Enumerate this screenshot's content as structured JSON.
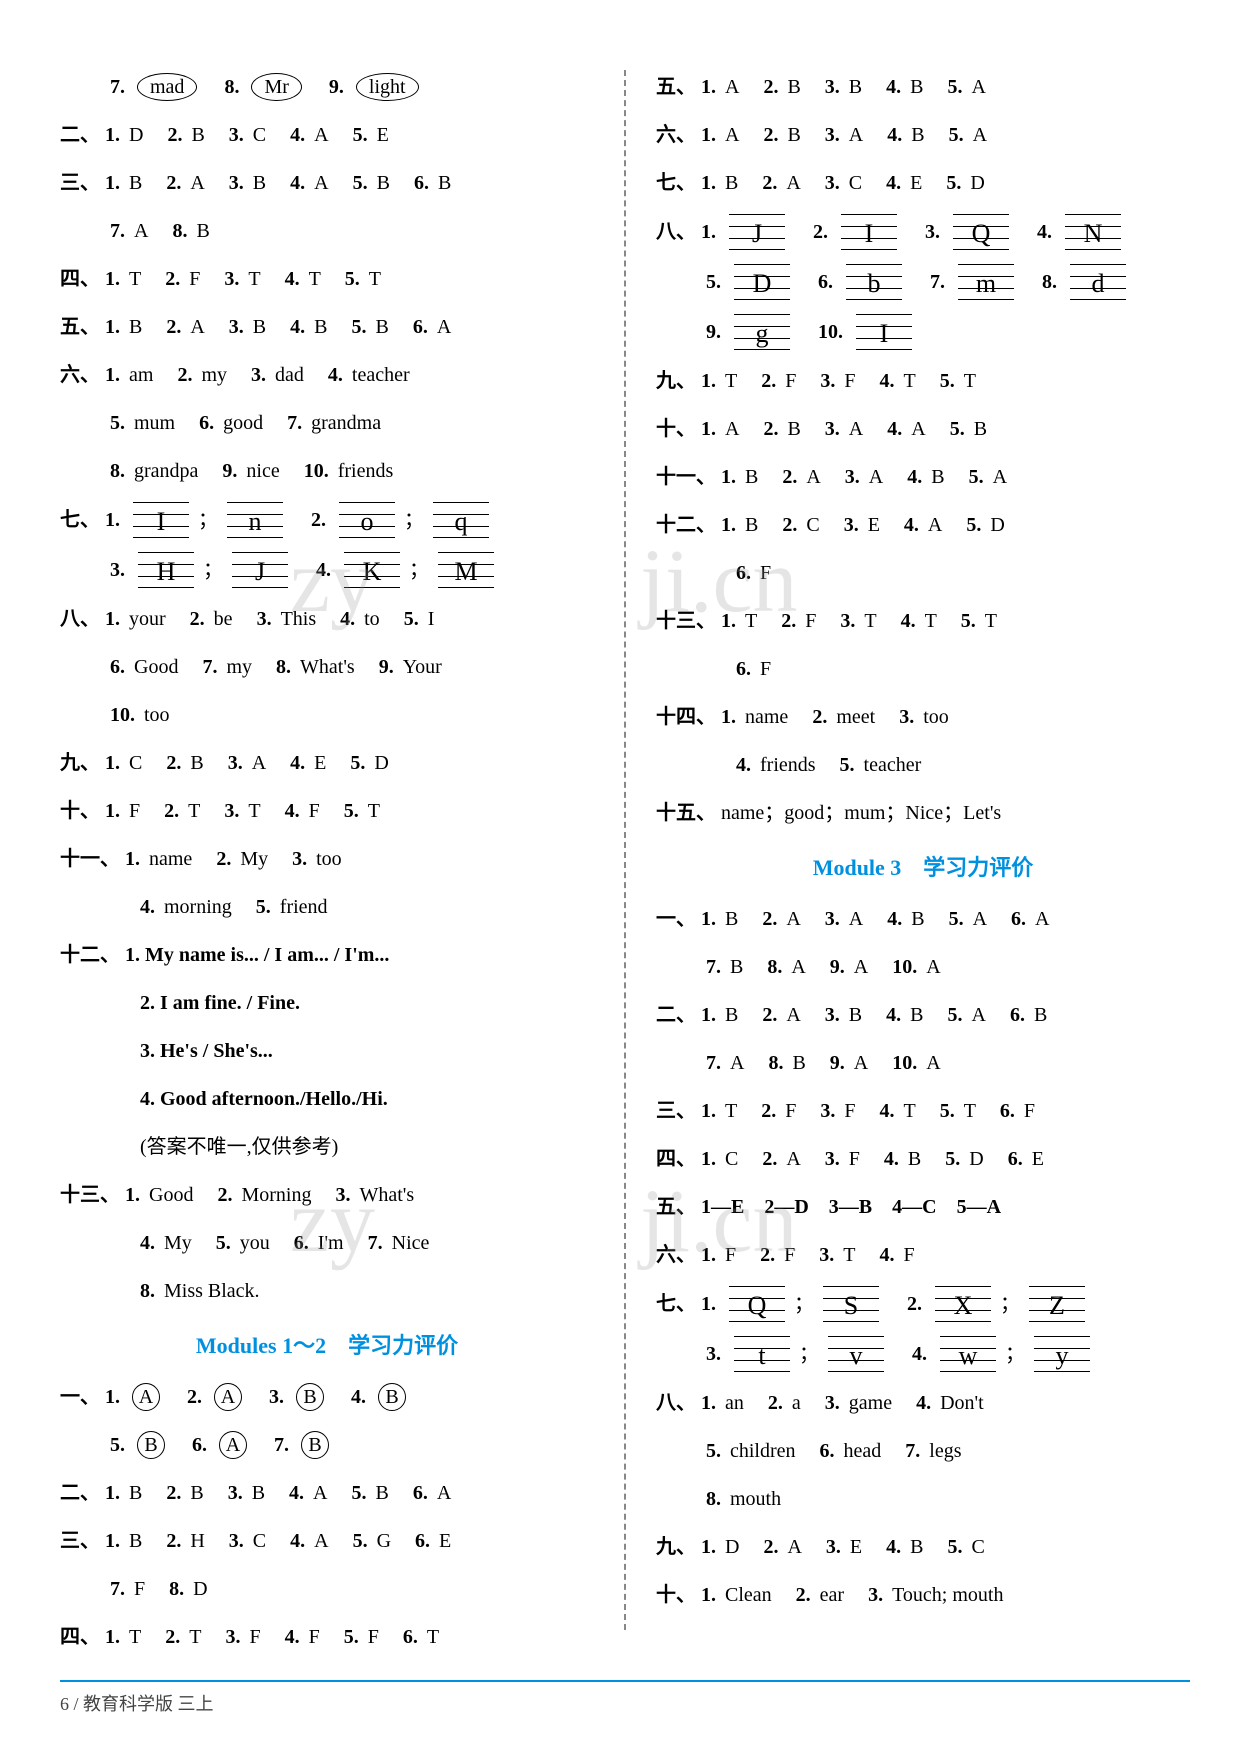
{
  "left": {
    "row_ovals": [
      {
        "n": "7.",
        "w": "mad"
      },
      {
        "n": "8.",
        "w": "Mr"
      },
      {
        "n": "9.",
        "w": "light"
      }
    ],
    "s2": {
      "label": "二、",
      "items": [
        {
          "n": "1.",
          "v": "D"
        },
        {
          "n": "2.",
          "v": "B"
        },
        {
          "n": "3.",
          "v": "C"
        },
        {
          "n": "4.",
          "v": "A"
        },
        {
          "n": "5.",
          "v": "E"
        }
      ]
    },
    "s3a": {
      "label": "三、",
      "items": [
        {
          "n": "1.",
          "v": "B"
        },
        {
          "n": "2.",
          "v": "A"
        },
        {
          "n": "3.",
          "v": "B"
        },
        {
          "n": "4.",
          "v": "A"
        },
        {
          "n": "5.",
          "v": "B"
        },
        {
          "n": "6.",
          "v": "B"
        }
      ]
    },
    "s3b": {
      "items": [
        {
          "n": "7.",
          "v": "A"
        },
        {
          "n": "8.",
          "v": "B"
        }
      ]
    },
    "s4": {
      "label": "四、",
      "items": [
        {
          "n": "1.",
          "v": "T"
        },
        {
          "n": "2.",
          "v": "F"
        },
        {
          "n": "3.",
          "v": "T"
        },
        {
          "n": "4.",
          "v": "T"
        },
        {
          "n": "5.",
          "v": "T"
        }
      ]
    },
    "s5": {
      "label": "五、",
      "items": [
        {
          "n": "1.",
          "v": "B"
        },
        {
          "n": "2.",
          "v": "A"
        },
        {
          "n": "3.",
          "v": "B"
        },
        {
          "n": "4.",
          "v": "B"
        },
        {
          "n": "5.",
          "v": "B"
        },
        {
          "n": "6.",
          "v": "A"
        }
      ]
    },
    "s6a": {
      "label": "六、",
      "items": [
        {
          "n": "1.",
          "v": "am"
        },
        {
          "n": "2.",
          "v": "my"
        },
        {
          "n": "3.",
          "v": "dad"
        },
        {
          "n": "4.",
          "v": "teacher"
        }
      ]
    },
    "s6b": {
      "items": [
        {
          "n": "5.",
          "v": "mum"
        },
        {
          "n": "6.",
          "v": "good"
        },
        {
          "n": "7.",
          "v": "grandma"
        }
      ]
    },
    "s6c": {
      "items": [
        {
          "n": "8.",
          "v": "grandpa"
        },
        {
          "n": "9.",
          "v": "nice"
        },
        {
          "n": "10.",
          "v": "friends"
        }
      ]
    },
    "s7": {
      "label": "七、",
      "r1": [
        {
          "n": "1.",
          "a": "I",
          "b": "n"
        },
        {
          "n": "2.",
          "a": "o",
          "b": "q"
        }
      ],
      "r2": [
        {
          "n": "3.",
          "a": "H",
          "b": "J"
        },
        {
          "n": "4.",
          "a": "K",
          "b": "M"
        }
      ]
    },
    "s8a": {
      "label": "八、",
      "items": [
        {
          "n": "1.",
          "v": "your"
        },
        {
          "n": "2.",
          "v": "be"
        },
        {
          "n": "3.",
          "v": "This"
        },
        {
          "n": "4.",
          "v": "to"
        },
        {
          "n": "5.",
          "v": "I"
        }
      ]
    },
    "s8b": {
      "items": [
        {
          "n": "6.",
          "v": "Good"
        },
        {
          "n": "7.",
          "v": "my"
        },
        {
          "n": "8.",
          "v": "What's"
        },
        {
          "n": "9.",
          "v": "Your"
        }
      ]
    },
    "s8c": {
      "items": [
        {
          "n": "10.",
          "v": "too"
        }
      ]
    },
    "s9": {
      "label": "九、",
      "items": [
        {
          "n": "1.",
          "v": "C"
        },
        {
          "n": "2.",
          "v": "B"
        },
        {
          "n": "3.",
          "v": "A"
        },
        {
          "n": "4.",
          "v": "E"
        },
        {
          "n": "5.",
          "v": "D"
        }
      ]
    },
    "s10": {
      "label": "十、",
      "items": [
        {
          "n": "1.",
          "v": "F"
        },
        {
          "n": "2.",
          "v": "T"
        },
        {
          "n": "3.",
          "v": "T"
        },
        {
          "n": "4.",
          "v": "F"
        },
        {
          "n": "5.",
          "v": "T"
        }
      ]
    },
    "s11a": {
      "label": "十一、",
      "items": [
        {
          "n": "1.",
          "v": "name"
        },
        {
          "n": "2.",
          "v": "My"
        },
        {
          "n": "3.",
          "v": "too"
        }
      ]
    },
    "s11b": {
      "items": [
        {
          "n": "4.",
          "v": "morning"
        },
        {
          "n": "5.",
          "v": "friend"
        }
      ]
    },
    "s12": {
      "label": "十二、",
      "r1": "1. My name is... / I am... / I'm...",
      "r2": "2. I am fine. / Fine.",
      "r3": "3. He's / She's...",
      "r4": "4. Good afternoon./Hello./Hi.",
      "r5": "(答案不唯一,仅供参考)"
    },
    "s13a": {
      "label": "十三、",
      "items": [
        {
          "n": "1.",
          "v": "Good"
        },
        {
          "n": "2.",
          "v": "Morning"
        },
        {
          "n": "3.",
          "v": "What's"
        }
      ]
    },
    "s13b": {
      "items": [
        {
          "n": "4.",
          "v": "My"
        },
        {
          "n": "5.",
          "v": "you"
        },
        {
          "n": "6.",
          "v": "I'm"
        },
        {
          "n": "7.",
          "v": "Nice"
        }
      ]
    },
    "s13c": {
      "items": [
        {
          "n": "8.",
          "v": "Miss Black."
        }
      ]
    },
    "mod12_title": "Modules 1～2　学习力评价",
    "m1a": {
      "label": "一、",
      "items": [
        {
          "n": "1.",
          "v": "A"
        },
        {
          "n": "2.",
          "v": "A"
        },
        {
          "n": "3.",
          "v": "B"
        },
        {
          "n": "4.",
          "v": "B"
        }
      ]
    },
    "m1b": {
      "items": [
        {
          "n": "5.",
          "v": "B"
        },
        {
          "n": "6.",
          "v": "A"
        },
        {
          "n": "7.",
          "v": "B"
        }
      ]
    },
    "m2": {
      "label": "二、",
      "items": [
        {
          "n": "1.",
          "v": "B"
        },
        {
          "n": "2.",
          "v": "B"
        },
        {
          "n": "3.",
          "v": "B"
        },
        {
          "n": "4.",
          "v": "A"
        },
        {
          "n": "5.",
          "v": "B"
        },
        {
          "n": "6.",
          "v": "A"
        }
      ]
    },
    "m3a": {
      "label": "三、",
      "items": [
        {
          "n": "1.",
          "v": "B"
        },
        {
          "n": "2.",
          "v": "H"
        },
        {
          "n": "3.",
          "v": "C"
        },
        {
          "n": "4.",
          "v": "A"
        },
        {
          "n": "5.",
          "v": "G"
        },
        {
          "n": "6.",
          "v": "E"
        }
      ]
    },
    "m3b": {
      "items": [
        {
          "n": "7.",
          "v": "F"
        },
        {
          "n": "8.",
          "v": "D"
        }
      ]
    },
    "m4": {
      "label": "四、",
      "items": [
        {
          "n": "1.",
          "v": "T"
        },
        {
          "n": "2.",
          "v": "T"
        },
        {
          "n": "3.",
          "v": "F"
        },
        {
          "n": "4.",
          "v": "F"
        },
        {
          "n": "5.",
          "v": "F"
        },
        {
          "n": "6.",
          "v": "T"
        }
      ]
    }
  },
  "right": {
    "r5": {
      "label": "五、",
      "items": [
        {
          "n": "1.",
          "v": "A"
        },
        {
          "n": "2.",
          "v": "B"
        },
        {
          "n": "3.",
          "v": "B"
        },
        {
          "n": "4.",
          "v": "B"
        },
        {
          "n": "5.",
          "v": "A"
        }
      ]
    },
    "r6": {
      "label": "六、",
      "items": [
        {
          "n": "1.",
          "v": "A"
        },
        {
          "n": "2.",
          "v": "B"
        },
        {
          "n": "3.",
          "v": "A"
        },
        {
          "n": "4.",
          "v": "B"
        },
        {
          "n": "5.",
          "v": "A"
        }
      ]
    },
    "r7": {
      "label": "七、",
      "items": [
        {
          "n": "1.",
          "v": "B"
        },
        {
          "n": "2.",
          "v": "A"
        },
        {
          "n": "3.",
          "v": "C"
        },
        {
          "n": "4.",
          "v": "E"
        },
        {
          "n": "5.",
          "v": "D"
        }
      ]
    },
    "r8": {
      "label": "八、",
      "row1": [
        {
          "n": "1.",
          "v": "J"
        },
        {
          "n": "2.",
          "v": "I"
        },
        {
          "n": "3.",
          "v": "Q"
        },
        {
          "n": "4.",
          "v": "N"
        }
      ],
      "row2": [
        {
          "n": "5.",
          "v": "D"
        },
        {
          "n": "6.",
          "v": "b"
        },
        {
          "n": "7.",
          "v": "m"
        },
        {
          "n": "8.",
          "v": "d"
        }
      ],
      "row3": [
        {
          "n": "9.",
          "v": "g"
        },
        {
          "n": "10.",
          "v": "I"
        }
      ]
    },
    "r9": {
      "label": "九、",
      "items": [
        {
          "n": "1.",
          "v": "T"
        },
        {
          "n": "2.",
          "v": "F"
        },
        {
          "n": "3.",
          "v": "F"
        },
        {
          "n": "4.",
          "v": "T"
        },
        {
          "n": "5.",
          "v": "T"
        }
      ]
    },
    "r10": {
      "label": "十、",
      "items": [
        {
          "n": "1.",
          "v": "A"
        },
        {
          "n": "2.",
          "v": "B"
        },
        {
          "n": "3.",
          "v": "A"
        },
        {
          "n": "4.",
          "v": "A"
        },
        {
          "n": "5.",
          "v": "B"
        }
      ]
    },
    "r11": {
      "label": "十一、",
      "items": [
        {
          "n": "1.",
          "v": "B"
        },
        {
          "n": "2.",
          "v": "A"
        },
        {
          "n": "3.",
          "v": "A"
        },
        {
          "n": "4.",
          "v": "B"
        },
        {
          "n": "5.",
          "v": "A"
        }
      ]
    },
    "r12a": {
      "label": "十二、",
      "items": [
        {
          "n": "1.",
          "v": "B"
        },
        {
          "n": "2.",
          "v": "C"
        },
        {
          "n": "3.",
          "v": "E"
        },
        {
          "n": "4.",
          "v": "A"
        },
        {
          "n": "5.",
          "v": "D"
        }
      ]
    },
    "r12b": {
      "items": [
        {
          "n": "6.",
          "v": "F"
        }
      ]
    },
    "r13a": {
      "label": "十三、",
      "items": [
        {
          "n": "1.",
          "v": "T"
        },
        {
          "n": "2.",
          "v": "F"
        },
        {
          "n": "3.",
          "v": "T"
        },
        {
          "n": "4.",
          "v": "T"
        },
        {
          "n": "5.",
          "v": "T"
        }
      ]
    },
    "r13b": {
      "items": [
        {
          "n": "6.",
          "v": "F"
        }
      ]
    },
    "r14a": {
      "label": "十四、",
      "items": [
        {
          "n": "1.",
          "v": "name"
        },
        {
          "n": "2.",
          "v": "meet"
        },
        {
          "n": "3.",
          "v": "too"
        }
      ]
    },
    "r14b": {
      "items": [
        {
          "n": "4.",
          "v": "friends"
        },
        {
          "n": "5.",
          "v": "teacher"
        }
      ]
    },
    "r15": {
      "label": "十五、",
      "text": "name；good；mum；Nice；Let's"
    },
    "mod3_title": "Module 3　学习力评价",
    "n1a": {
      "label": "一、",
      "items": [
        {
          "n": "1.",
          "v": "B"
        },
        {
          "n": "2.",
          "v": "A"
        },
        {
          "n": "3.",
          "v": "A"
        },
        {
          "n": "4.",
          "v": "B"
        },
        {
          "n": "5.",
          "v": "A"
        },
        {
          "n": "6.",
          "v": "A"
        }
      ]
    },
    "n1b": {
      "items": [
        {
          "n": "7.",
          "v": "B"
        },
        {
          "n": "8.",
          "v": "A"
        },
        {
          "n": "9.",
          "v": "A"
        },
        {
          "n": "10.",
          "v": "A"
        }
      ]
    },
    "n2a": {
      "label": "二、",
      "items": [
        {
          "n": "1.",
          "v": "B"
        },
        {
          "n": "2.",
          "v": "A"
        },
        {
          "n": "3.",
          "v": "B"
        },
        {
          "n": "4.",
          "v": "B"
        },
        {
          "n": "5.",
          "v": "A"
        },
        {
          "n": "6.",
          "v": "B"
        }
      ]
    },
    "n2b": {
      "items": [
        {
          "n": "7.",
          "v": "A"
        },
        {
          "n": "8.",
          "v": "B"
        },
        {
          "n": "9.",
          "v": "A"
        },
        {
          "n": "10.",
          "v": "A"
        }
      ]
    },
    "n3": {
      "label": "三、",
      "items": [
        {
          "n": "1.",
          "v": "T"
        },
        {
          "n": "2.",
          "v": "F"
        },
        {
          "n": "3.",
          "v": "F"
        },
        {
          "n": "4.",
          "v": "T"
        },
        {
          "n": "5.",
          "v": "T"
        },
        {
          "n": "6.",
          "v": "F"
        }
      ]
    },
    "n4": {
      "label": "四、",
      "items": [
        {
          "n": "1.",
          "v": "C"
        },
        {
          "n": "2.",
          "v": "A"
        },
        {
          "n": "3.",
          "v": "F"
        },
        {
          "n": "4.",
          "v": "B"
        },
        {
          "n": "5.",
          "v": "D"
        },
        {
          "n": "6.",
          "v": "E"
        }
      ]
    },
    "n5": {
      "label": "五、",
      "text": "1—E　2—D　3—B　4—C　5—A"
    },
    "n6": {
      "label": "六、",
      "items": [
        {
          "n": "1.",
          "v": "F"
        },
        {
          "n": "2.",
          "v": "F"
        },
        {
          "n": "3.",
          "v": "T"
        },
        {
          "n": "4.",
          "v": "F"
        }
      ]
    },
    "n7": {
      "label": "七、",
      "row1": [
        {
          "n": "1.",
          "a": "Q",
          "b": "S"
        },
        {
          "n": "2.",
          "a": "X",
          "b": "Z"
        }
      ],
      "row2": [
        {
          "n": "3.",
          "a": "t",
          "b": "v"
        },
        {
          "n": "4.",
          "a": "w",
          "b": "y"
        }
      ]
    },
    "n8a": {
      "label": "八、",
      "items": [
        {
          "n": "1.",
          "v": "an"
        },
        {
          "n": "2.",
          "v": "a"
        },
        {
          "n": "3.",
          "v": "game"
        },
        {
          "n": "4.",
          "v": "Don't"
        }
      ]
    },
    "n8b": {
      "items": [
        {
          "n": "5.",
          "v": "children"
        },
        {
          "n": "6.",
          "v": "head"
        },
        {
          "n": "7.",
          "v": "legs"
        }
      ]
    },
    "n8c": {
      "items": [
        {
          "n": "8.",
          "v": "mouth"
        }
      ]
    },
    "n9": {
      "label": "九、",
      "items": [
        {
          "n": "1.",
          "v": "D"
        },
        {
          "n": "2.",
          "v": "A"
        },
        {
          "n": "3.",
          "v": "E"
        },
        {
          "n": "4.",
          "v": "B"
        },
        {
          "n": "5.",
          "v": "C"
        }
      ]
    },
    "n10": {
      "label": "十、",
      "items": [
        {
          "n": "1.",
          "v": "Clean"
        },
        {
          "n": "2.",
          "v": "ear"
        },
        {
          "n": "3.",
          "v": "Touch; mouth"
        }
      ]
    }
  },
  "footer": "6 / 教育科学版 三上",
  "watermarks": {
    "a": "zy",
    "b": "ji",
    "c": "cn"
  }
}
